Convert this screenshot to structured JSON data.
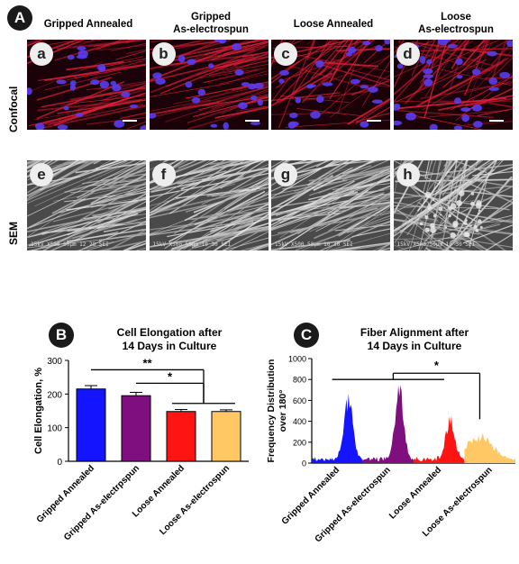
{
  "panel_a": {
    "badge": "A",
    "columns": [
      {
        "title": "Gripped Annealed"
      },
      {
        "title": "Gripped\nAs-electrospun"
      },
      {
        "title": "Loose Annealed"
      },
      {
        "title": "Loose\nAs-electrospun"
      }
    ],
    "rows": [
      {
        "label": "Confocal"
      },
      {
        "label": "SEM"
      }
    ],
    "tiles": [
      {
        "letter": "a",
        "kind": "confocal"
      },
      {
        "letter": "b",
        "kind": "confocal"
      },
      {
        "letter": "c",
        "kind": "confocal"
      },
      {
        "letter": "d",
        "kind": "confocal"
      },
      {
        "letter": "e",
        "kind": "sem",
        "caption": "15kV   X500  50μm     12 28 SEI"
      },
      {
        "letter": "f",
        "kind": "sem",
        "caption": "15kV   X500  50μm     10 30 SEI"
      },
      {
        "letter": "g",
        "kind": "sem",
        "caption": "15kV   X500  50μm     10 30 SEI"
      },
      {
        "letter": "h",
        "kind": "sem",
        "caption": "15kV   X500  50μm     10 30 SEI"
      }
    ],
    "colors": {
      "confocal_bg": "#1a0208",
      "actin": "#e0203a",
      "nuclei": "#5a3cf0",
      "sem_bg": "#4a4a4a"
    }
  },
  "panel_b": {
    "badge": "B",
    "title": "Cell Elongation after\n14 Days in Culture",
    "chart_data": {
      "type": "bar",
      "title": "Cell Elongation after 14 Days in Culture",
      "ylabel": "Cell Elongation, %",
      "ylim": [
        0,
        300
      ],
      "yticks": [
        "0",
        "100",
        "200",
        "300"
      ],
      "categories": [
        "Gripped Annealed",
        "Gripped As-electrpspun",
        "Loose Annealed",
        "Loose As-electrospun"
      ],
      "values": [
        215,
        195,
        148,
        148
      ],
      "errors": [
        10,
        10,
        6,
        5
      ],
      "colors": [
        "#1414ff",
        "#7f0f7f",
        "#ff1414",
        "#ffc864"
      ],
      "annotations": [
        {
          "text": "**",
          "from": 0,
          "to_pair": [
            2,
            3
          ]
        },
        {
          "text": "*",
          "from": 1,
          "to_pair": [
            2,
            3
          ]
        }
      ]
    }
  },
  "panel_c": {
    "badge": "C",
    "title": "Fiber Alignment after\n14 Days in Culture",
    "chart_data": {
      "type": "area",
      "title": "Fiber Alignment after 14 Days in Culture",
      "ylabel": "Frequency Distribution\nover 180°",
      "ylim": [
        0,
        1000
      ],
      "yticks": [
        "0",
        "200",
        "400",
        "600",
        "800",
        "1000"
      ],
      "categories": [
        "Gripped Annealed",
        "Gripped As-electrospun",
        "Loose Annealed",
        "Loose As-electrospun"
      ],
      "colors": [
        "#1414ff",
        "#7f0f7f",
        "#ff1414",
        "#ffc864"
      ],
      "peaks": [
        590,
        660,
        400,
        230
      ],
      "annotations": [
        {
          "text": "*"
        }
      ]
    }
  }
}
